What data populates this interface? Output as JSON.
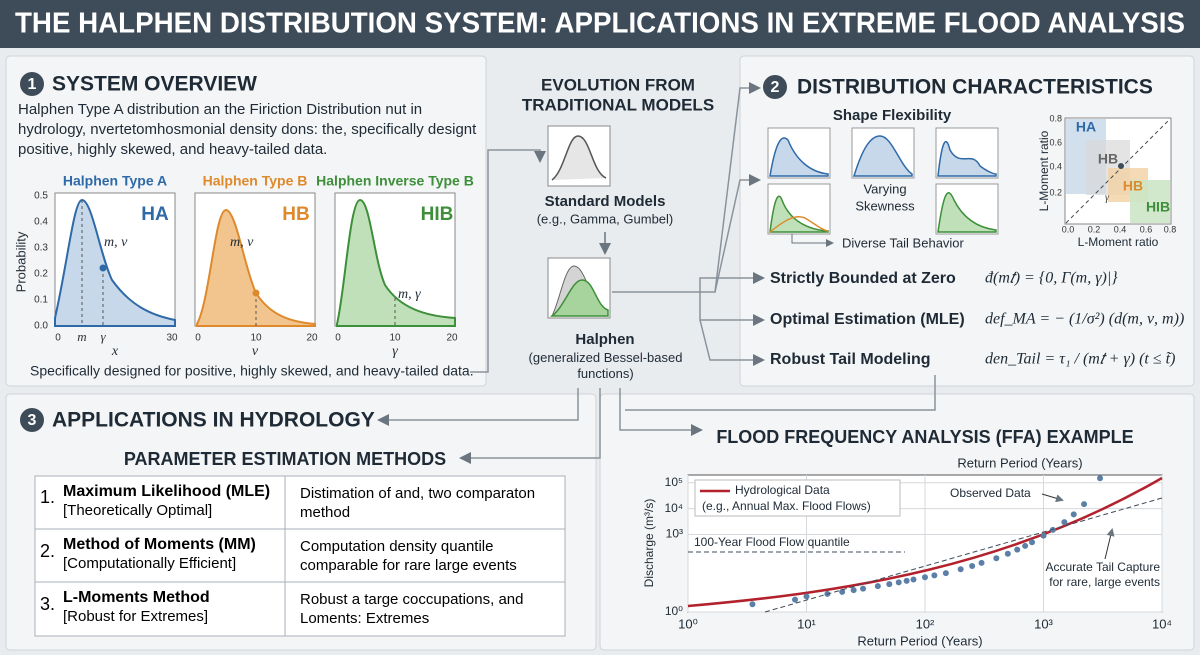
{
  "header": {
    "title": "THE HALPHEN DISTRIBUTION SYSTEM: APPLICATIONS IN EXTREME FLOOD ANALYSIS"
  },
  "overview": {
    "number": "1",
    "title": "SYSTEM OVERVIEW",
    "text": "Halphen Type A distribution an the Firiction Distribution nut in hydrology, nvertetomhosmonial density dons: the, specifically designt positive, highly skewed, and heavy-tailed data.",
    "caption": "Specifically designed for positive, highly skewed, and heavy-tailed data.",
    "y_label": "Probability",
    "y_ticks": [
      "0.0",
      "0.1",
      "0.2",
      "0.3",
      "0.4",
      "0.5"
    ],
    "panels": [
      {
        "title": "Halphen Type A",
        "tag": "HA",
        "param": "m, ν",
        "x_label": "x",
        "x_ticks": [
          "0",
          "m",
          "γ",
          "30"
        ],
        "color": "#2f6aa8"
      },
      {
        "title": "Halphen Type B",
        "tag": "HB",
        "param": "m, ν",
        "x_label": "ν",
        "x_ticks": [
          "0",
          "10",
          "20"
        ],
        "color": "#de8a2c"
      },
      {
        "title": "Halphen Inverse Type B",
        "tag": "HIB",
        "param": "m, γ",
        "x_label": "γ",
        "x_ticks": [
          "0",
          "10",
          "20"
        ],
        "color": "#3d8f3a"
      }
    ]
  },
  "evolution": {
    "title": [
      "EVOLUTION FROM",
      "TRADITIONAL MODELS"
    ],
    "standard": "Standard Models",
    "standard_sub": "(e.g., Gamma, Gumbel)",
    "halphen": "Halphen",
    "halphen_sub": "(generalized Bessel-based functions)"
  },
  "characteristics": {
    "number": "2",
    "title": "DISTRIBUTION CHARACTERISTICS",
    "shape_title": "Shape Flexibility",
    "skew": [
      "Varying",
      "Skewness"
    ],
    "tail": "Diverse Tail Behavior",
    "lmoment": {
      "tags": [
        "HA",
        "HB",
        "HB",
        "HIB",
        "γ"
      ],
      "x_label": "L-Moment ratio",
      "y_label": "L-Moment ratio",
      "x_ticks": [
        "0.0",
        "0.2",
        "0.4",
        "0.6",
        "0.8"
      ],
      "y_ticks": [
        "0.2",
        "0.4",
        "0.6",
        "0.8"
      ]
    },
    "features": [
      {
        "label": "Strictly Bounded at Zero",
        "formula": "đ(m𝑡) = {0, Γ(m, γ)|}"
      },
      {
        "label": "Optimal Estimation (MLE)",
        "formula": "def_MA = − (1/σ²) (d(m, ν, m))"
      },
      {
        "label": "Robust Tail Modeling",
        "formula": "den_Tail = τ₁ / (m𝑡 + γ)  (t ≤ t̃)"
      }
    ]
  },
  "applications": {
    "number": "3",
    "title": "APPLICATIONS IN HYDROLOGY",
    "methods_title": "PARAMETER ESTIMATION METHODS",
    "rows": [
      [
        "1.",
        "Maximum Likelihood (MLE)",
        "[Theoretically Optimal]",
        "Distimation of and, two comparaton method"
      ],
      [
        "2.",
        "Method of Moments (MM)",
        "[Computationally Efficient]",
        "Computation density quantile comparable for rare large events"
      ],
      [
        "3.",
        "L-Moments Method",
        "[Robust for Extremes]",
        "Robust a targe coccupations, and Loments: Extremes"
      ]
    ]
  },
  "ffa": {
    "title": "FLOOD FREQUENCY ANALYSIS (FFA) EXAMPLE",
    "top_label": "Return Period (Years)",
    "x_label": "Return Period (Years)",
    "y_label": "Discharge (m³/s)",
    "legend": [
      "Hydrological Data",
      "(e.g., Annual Max. Flood Flows)"
    ],
    "observed_label": "Observed Data",
    "quantile_label": "100-Year Flood Flow quantile",
    "tail_label": [
      "Accurate Tail Capture",
      "for rare, large events"
    ],
    "log_scale": true,
    "grid": true,
    "curve_color": "#b3212c",
    "point_color": "#5b7fa6",
    "xlim": [
      1,
      10000
    ],
    "ylim": [
      1,
      200000
    ],
    "xticks": [
      {
        "value": 1,
        "label": "10⁰"
      },
      {
        "value": 10,
        "label": "10¹"
      },
      {
        "value": 100,
        "label": "10²"
      },
      {
        "value": 1000,
        "label": "10³"
      },
      {
        "value": 10000,
        "label": "10⁴"
      }
    ],
    "yticks": [
      {
        "value": 1,
        "label": "10⁰"
      },
      {
        "value": 1000,
        "label": "10³"
      },
      {
        "value": 10000,
        "label": "10⁴"
      },
      {
        "value": 100000,
        "label": "10⁵"
      }
    ],
    "points": {
      "x": [
        3.5,
        8,
        10,
        15,
        20,
        25,
        30,
        40,
        50,
        60,
        70,
        80,
        100,
        120,
        150,
        200,
        250,
        300,
        400,
        500,
        600,
        700,
        800,
        1000,
        1200,
        1500,
        1800,
        2200,
        3000
      ],
      "y": [
        2,
        3,
        4,
        5,
        6,
        7,
        8,
        10,
        12,
        14,
        16,
        18,
        22,
        26,
        32,
        45,
        60,
        80,
        120,
        180,
        260,
        360,
        500,
        900,
        1500,
        3000,
        6000,
        15000,
        150000
      ]
    }
  }
}
